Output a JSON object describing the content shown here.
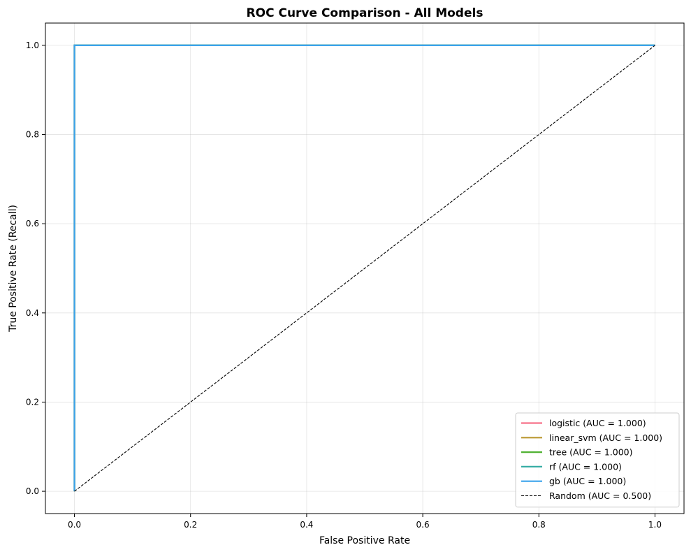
{
  "chart_data": {
    "type": "line",
    "title": "ROC Curve Comparison - All Models",
    "xlabel": "False Positive Rate",
    "ylabel": "True Positive Rate (Recall)",
    "xlim": [
      -0.05,
      1.05
    ],
    "ylim": [
      -0.05,
      1.05
    ],
    "xticks": [
      0.0,
      0.2,
      0.4,
      0.6,
      0.8,
      1.0
    ],
    "yticks": [
      0.0,
      0.2,
      0.4,
      0.6,
      0.8,
      1.0
    ],
    "xtick_labels": [
      "0.0",
      "0.2",
      "0.4",
      "0.6",
      "0.8",
      "1.0"
    ],
    "ytick_labels": [
      "0.0",
      "0.2",
      "0.4",
      "0.6",
      "0.8",
      "1.0"
    ],
    "grid": true,
    "legend_position": "lower-right",
    "series": [
      {
        "name": "logistic (AUC = 1.000)",
        "color": "#f77189",
        "dash": "solid",
        "x": [
          0.0,
          0.0,
          1.0
        ],
        "y": [
          0.0,
          1.0,
          1.0
        ]
      },
      {
        "name": "linear_svm (AUC = 1.000)",
        "color": "#bb9832",
        "dash": "solid",
        "x": [
          0.0,
          0.0,
          1.0
        ],
        "y": [
          0.0,
          1.0,
          1.0
        ]
      },
      {
        "name": "tree (AUC = 1.000)",
        "color": "#50b131",
        "dash": "solid",
        "x": [
          0.0,
          0.0,
          1.0
        ],
        "y": [
          0.0,
          1.0,
          1.0
        ]
      },
      {
        "name": "rf (AUC = 1.000)",
        "color": "#36ada4",
        "dash": "solid",
        "x": [
          0.0,
          0.0,
          1.0
        ],
        "y": [
          0.0,
          1.0,
          1.0
        ]
      },
      {
        "name": "gb (AUC = 1.000)",
        "color": "#3ba3ec",
        "dash": "solid",
        "x": [
          0.0,
          0.0,
          1.0
        ],
        "y": [
          0.0,
          1.0,
          1.0
        ]
      },
      {
        "name": "Random (AUC = 0.500)",
        "color": "#000000",
        "dash": "dashed",
        "x": [
          0.0,
          1.0
        ],
        "y": [
          0.0,
          1.0
        ]
      }
    ]
  }
}
